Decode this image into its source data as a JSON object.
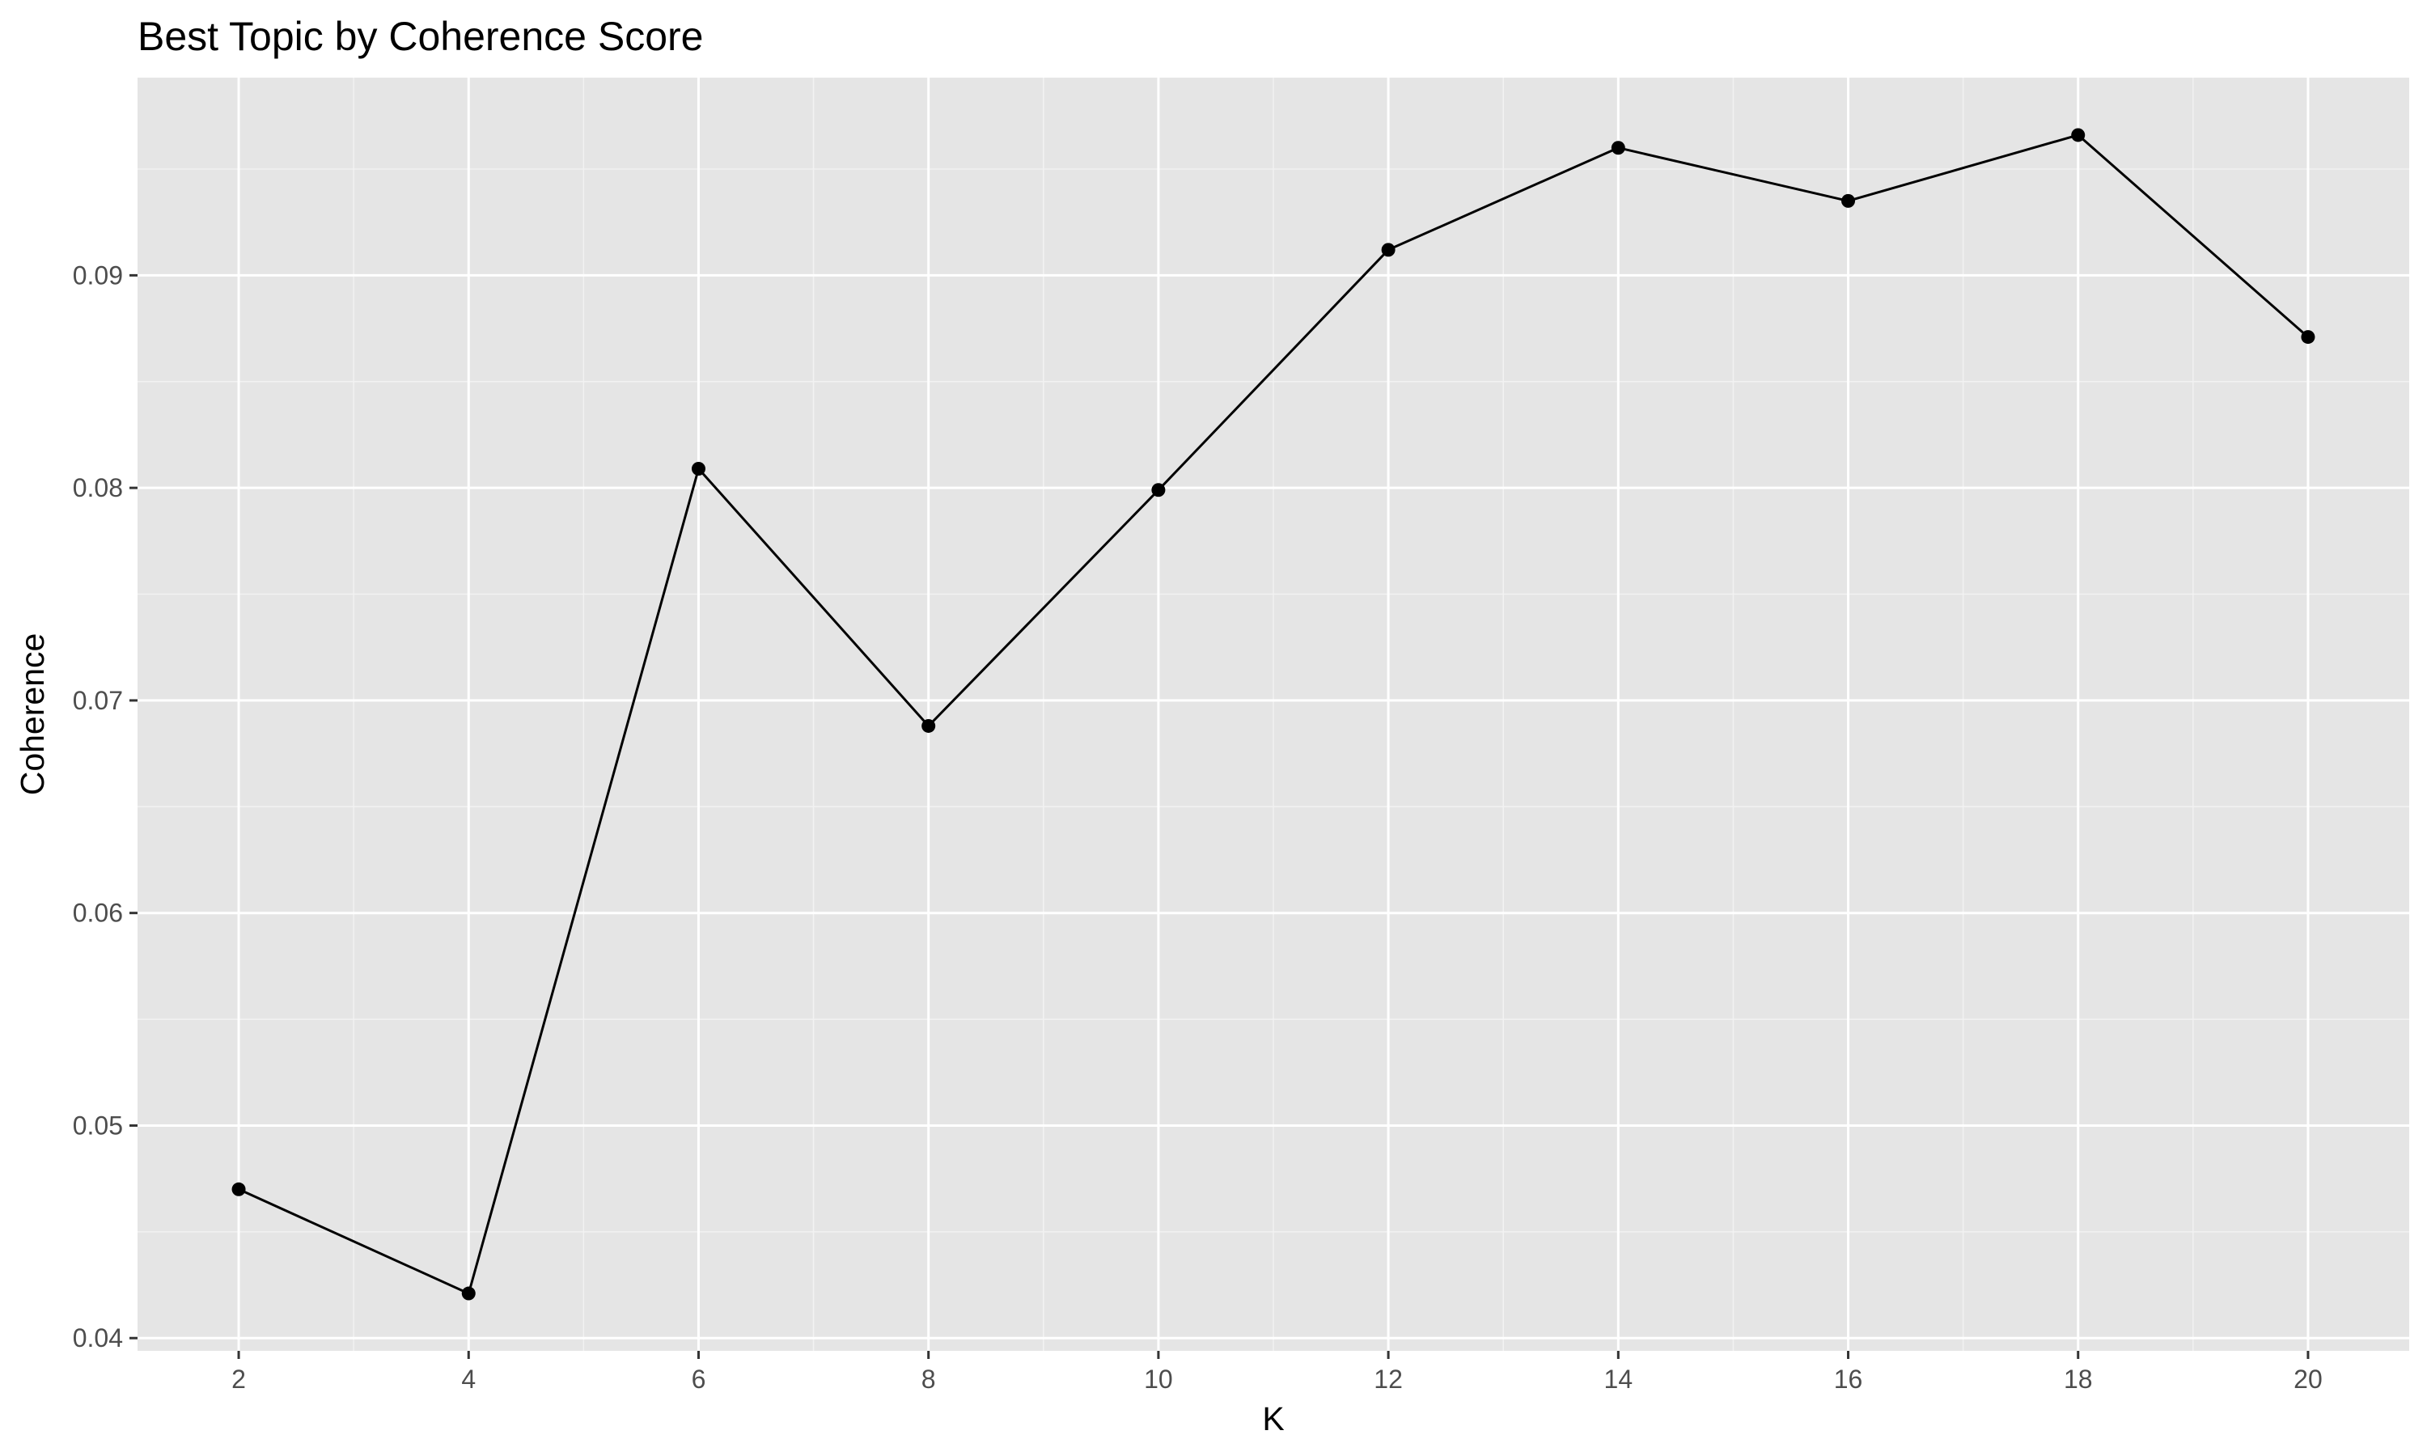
{
  "chart_data": {
    "type": "line",
    "title": "Best Topic by Coherence Score",
    "xlabel": "K",
    "ylabel": "Coherence",
    "x": [
      2,
      4,
      6,
      8,
      10,
      12,
      14,
      16,
      18,
      20
    ],
    "series": [
      {
        "values": [
          0.047,
          0.0421,
          0.0809,
          0.0688,
          0.0799,
          0.0912,
          0.096,
          0.0935,
          0.0966,
          0.0871
        ]
      }
    ],
    "xlim": [
      1.12,
      20.88
    ],
    "ylim": [
      0.0394,
      0.0993
    ],
    "x_ticks": [
      2,
      4,
      6,
      8,
      10,
      12,
      14,
      16,
      18,
      20
    ],
    "x_tick_labels": [
      "2",
      "4",
      "6",
      "8",
      "10",
      "12",
      "14",
      "16",
      "18",
      "20"
    ],
    "x_minor_ticks": [
      3,
      5,
      7,
      9,
      11,
      13,
      15,
      17,
      19
    ],
    "y_ticks": [
      0.04,
      0.05,
      0.06,
      0.07,
      0.08,
      0.09
    ],
    "y_tick_labels": [
      "0.04",
      "0.05",
      "0.06",
      "0.07",
      "0.08",
      "0.09"
    ],
    "y_minor_ticks": [
      0.045,
      0.055,
      0.065,
      0.075,
      0.085,
      0.095
    ],
    "grid": true,
    "colors": {
      "panel_background": "#e5e5e5",
      "grid_major": "#ffffff",
      "grid_minor": "#f2f2f2",
      "line": "#000000",
      "point": "#000000",
      "tick_text": "#4d4d4d",
      "tick_mark": "#333333"
    }
  }
}
